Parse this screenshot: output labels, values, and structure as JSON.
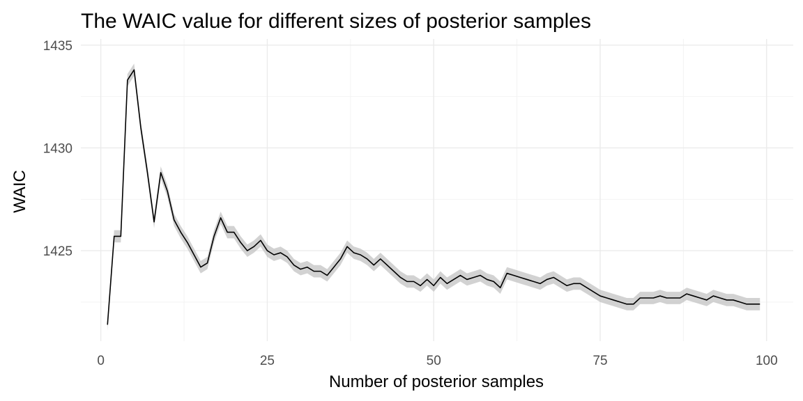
{
  "chart_data": {
    "type": "line",
    "title": "The WAIC value for different sizes of posterior samples",
    "xlabel": "Number of posterior samples",
    "ylabel": "WAIC",
    "xlim": [
      -3,
      104
    ],
    "ylim": [
      1420.6,
      1435.3
    ],
    "x_ticks": [
      0,
      25,
      50,
      75,
      100
    ],
    "x_tick_labels": [
      "0",
      "25",
      "50",
      "75",
      "100"
    ],
    "y_ticks": [
      1425,
      1430,
      1435
    ],
    "y_tick_labels": [
      "1425",
      "1430",
      "1435"
    ],
    "grid": true,
    "legend": "none",
    "colors": {
      "line": "#000000",
      "ribbon": "#bfbfbf"
    },
    "ribbon_halfwidth": 0.3,
    "series": [
      {
        "x": [
          1,
          2,
          3,
          4,
          5,
          6,
          7,
          8,
          9,
          10,
          11,
          12,
          13,
          14,
          15,
          16,
          17,
          18,
          19,
          20,
          21,
          22,
          23,
          24,
          25,
          26,
          27,
          28,
          29,
          30,
          31,
          32,
          33,
          34,
          35,
          36,
          37,
          38,
          39,
          40,
          41,
          42,
          43,
          44,
          45,
          46,
          47,
          48,
          49,
          50,
          51,
          52,
          53,
          54,
          55,
          56,
          57,
          58,
          59,
          60,
          61,
          62,
          63,
          64,
          65,
          66,
          67,
          68,
          69,
          70,
          71,
          72,
          73,
          74,
          75,
          76,
          77,
          78,
          79,
          80,
          81,
          82,
          83,
          84,
          85,
          86,
          87,
          88,
          89,
          90,
          91,
          92,
          93,
          94,
          95,
          96,
          97,
          98,
          99
        ],
        "values": [
          1421.4,
          1425.7,
          1425.7,
          1433.3,
          1433.8,
          1431.0,
          1428.8,
          1426.4,
          1428.8,
          1427.9,
          1426.5,
          1425.9,
          1425.4,
          1424.8,
          1424.2,
          1424.4,
          1425.7,
          1426.6,
          1425.9,
          1425.9,
          1425.4,
          1425.0,
          1425.2,
          1425.5,
          1425.0,
          1424.8,
          1424.9,
          1424.7,
          1424.3,
          1424.1,
          1424.2,
          1424.0,
          1424.0,
          1423.8,
          1424.2,
          1424.6,
          1425.2,
          1424.9,
          1424.8,
          1424.6,
          1424.3,
          1424.6,
          1424.3,
          1424.0,
          1423.7,
          1423.5,
          1423.5,
          1423.3,
          1423.6,
          1423.3,
          1423.7,
          1423.4,
          1423.6,
          1423.8,
          1423.6,
          1423.7,
          1423.8,
          1423.6,
          1423.5,
          1423.2,
          1423.9,
          1423.8,
          1423.7,
          1423.6,
          1423.5,
          1423.4,
          1423.6,
          1423.7,
          1423.5,
          1423.3,
          1423.4,
          1423.4,
          1423.2,
          1423.0,
          1422.8,
          1422.7,
          1422.6,
          1422.5,
          1422.4,
          1422.4,
          1422.7,
          1422.7,
          1422.7,
          1422.8,
          1422.7,
          1422.7,
          1422.7,
          1422.9,
          1422.8,
          1422.7,
          1422.6,
          1422.8,
          1422.7,
          1422.6,
          1422.6,
          1422.5,
          1422.4,
          1422.4,
          1422.4
        ]
      }
    ]
  }
}
